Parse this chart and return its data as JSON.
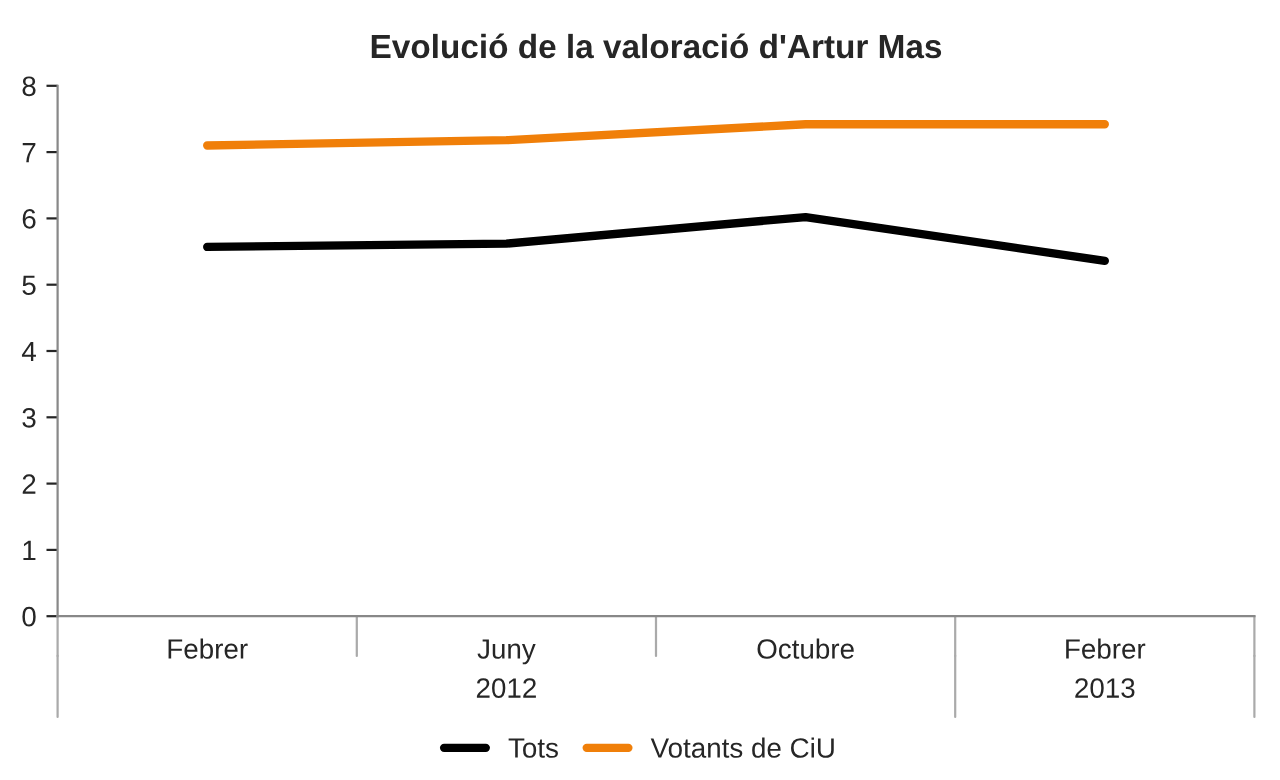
{
  "chart_data": {
    "type": "line",
    "title": "Evolució de la valoració d'Artur Mas",
    "categories": [
      "Febrer",
      "Juny",
      "Octubre",
      "Febrer"
    ],
    "series": [
      {
        "name": "Tots",
        "color": "#000000",
        "values": [
          5.57,
          5.62,
          6.02,
          5.36
        ]
      },
      {
        "name": "Votants de CiU",
        "color": "#f07f09",
        "values": [
          7.1,
          7.18,
          7.42,
          7.42
        ]
      }
    ],
    "ylim": [
      0,
      8
    ],
    "yticks": [
      0,
      1,
      2,
      3,
      4,
      5,
      6,
      7,
      8
    ],
    "annotations": [
      "2012",
      "2013"
    ],
    "grid": false,
    "legend": "bottom",
    "marker": "none",
    "line_style": "solid"
  }
}
